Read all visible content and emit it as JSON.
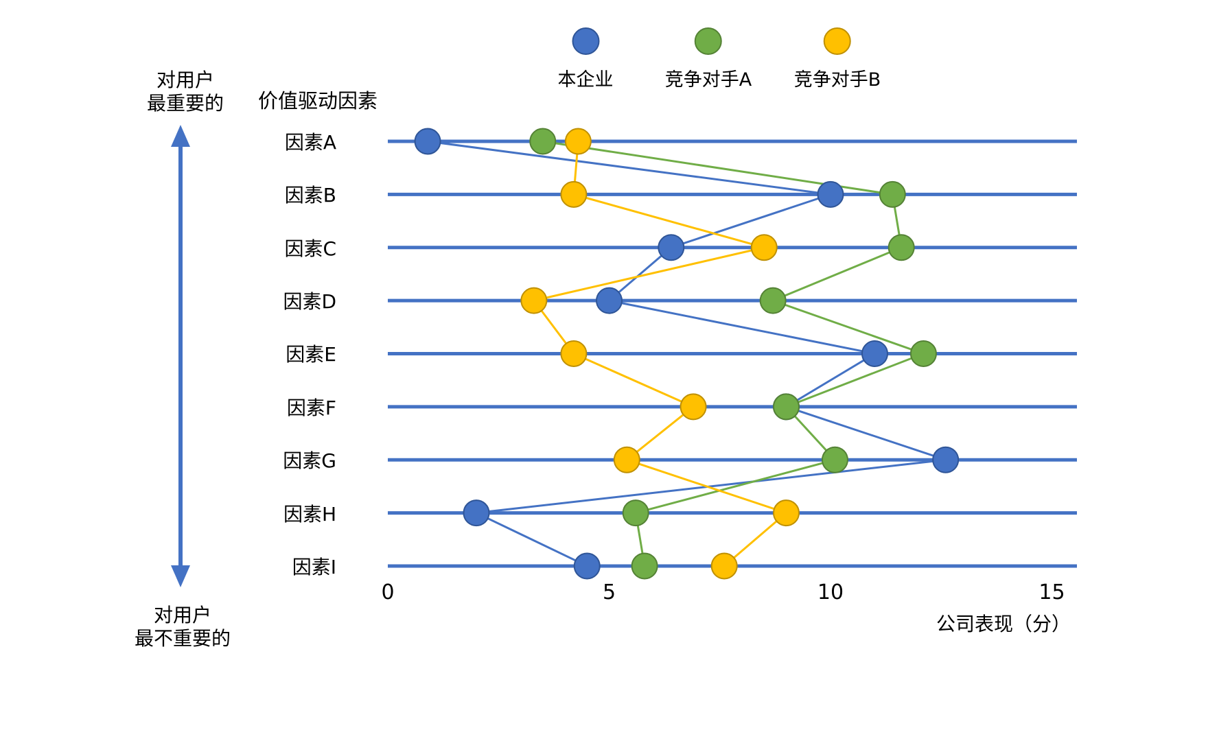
{
  "header": {
    "category_axis_label": "价值驱动因素"
  },
  "importance_axis": {
    "top": [
      "对用户",
      "最重要的"
    ],
    "bottom": [
      "对用户",
      "最不重要的"
    ],
    "arrow_color": "#4472C4"
  },
  "chart_data": {
    "type": "line",
    "orientation": "horizontal-rows",
    "title": "",
    "categories": [
      "因素A",
      "因素B",
      "因素C",
      "因素D",
      "因素E",
      "因素F",
      "因素G",
      "因素H",
      "因素I"
    ],
    "category_axis_label": "价值驱动因素",
    "value_axis_label": "公司表现（分）",
    "value_ticks": [
      0,
      5,
      10,
      15
    ],
    "value_range": [
      0,
      15.5
    ],
    "grid": "horizontal-category-lines",
    "row_line_color": "#4472C4",
    "legend_position": "top",
    "series": [
      {
        "name": "本企业",
        "color": "#4472C4",
        "border": "#2F5597",
        "values": [
          0.9,
          10.0,
          6.4,
          5.0,
          11.0,
          9.0,
          12.6,
          2.0,
          4.5
        ]
      },
      {
        "name": "竞争对手A",
        "color": "#70AD47",
        "border": "#548235",
        "values": [
          3.5,
          11.4,
          11.6,
          8.7,
          12.1,
          9.0,
          10.1,
          5.6,
          5.8
        ]
      },
      {
        "name": "竞争对手B",
        "color": "#FFC000",
        "border": "#BF9000",
        "values": [
          4.3,
          4.2,
          8.5,
          3.3,
          4.2,
          6.9,
          5.4,
          9.0,
          7.6
        ]
      }
    ]
  }
}
